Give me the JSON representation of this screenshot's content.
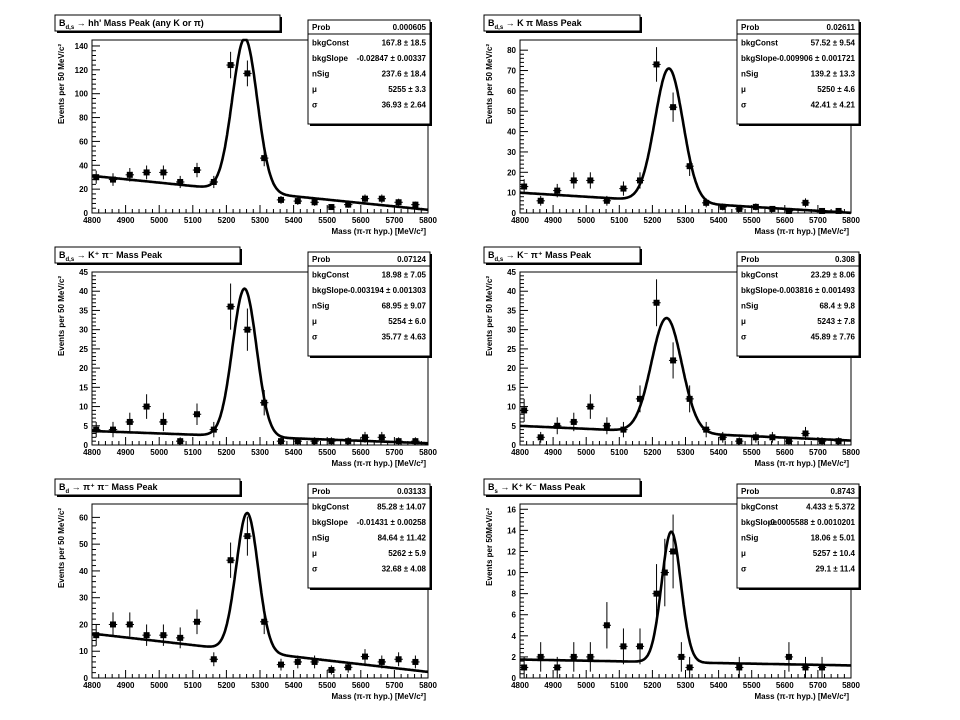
{
  "chart_data": [
    {
      "type": "scatter",
      "title": "B",
      "title_sub": "d,s",
      "title_rest": " → hh' Mass Peak (any K or π)",
      "xlabel": "Mass (π-π hyp.) [MeV/c²]",
      "ylabel": "Events per 50 MeV/c²",
      "xlim": [
        4800,
        5800
      ],
      "ylim": [
        0,
        145
      ],
      "xticks": [
        4800,
        4900,
        5000,
        5100,
        5200,
        5300,
        5400,
        5500,
        5600,
        5700,
        5800
      ],
      "yticks": [
        0,
        20,
        40,
        60,
        80,
        100,
        120,
        140
      ],
      "fit": {
        "const": 167.8,
        "slope": -0.02847,
        "nSig": 237.6,
        "mu": 5255,
        "sigma": 36.93
      },
      "points": {
        "x": [
          4812.5,
          4862.5,
          4912.5,
          4962.5,
          5012.5,
          5062.5,
          5112.5,
          5162.5,
          5212.5,
          5262.5,
          5312.5,
          5362.5,
          5412.5,
          5462.5,
          5512.5,
          5562.5,
          5612.5,
          5662.5,
          5712.5,
          5762.5
        ],
        "y": [
          30,
          28,
          32,
          34,
          34,
          26,
          36,
          26,
          124,
          117,
          46,
          11,
          10,
          9,
          5,
          7,
          12,
          12,
          9,
          7
        ],
        "err": [
          5.5,
          5.3,
          5.7,
          5.8,
          5.8,
          5.1,
          6,
          5.1,
          11.1,
          10.8,
          6.8,
          3.3,
          3.2,
          3,
          2.2,
          2.6,
          3.5,
          3.5,
          3,
          2.6
        ]
      },
      "stats": [
        {
          "label": "Prob",
          "value": "0.000605"
        },
        {
          "label": "bkgConst",
          "value": "167.8 ± 18.5"
        },
        {
          "label": "bkgSlope",
          "value": "-0.02847 ± 0.00337"
        },
        {
          "label": "nSig",
          "value": "237.6 ± 18.4"
        },
        {
          "label": "μ",
          "value": "5255 ± 3.3"
        },
        {
          "label": "σ",
          "value": "36.93 ± 2.64"
        }
      ]
    },
    {
      "type": "scatter",
      "title": "B",
      "title_sub": "d,s",
      "title_rest": " → K π Mass Peak",
      "xlabel": "Mass (π-π hyp.) [MeV/c²]",
      "ylabel": "Events per 50 MeV/c²",
      "xlim": [
        4800,
        5800
      ],
      "ylim": [
        0,
        85
      ],
      "xticks": [
        4800,
        4900,
        5000,
        5100,
        5200,
        5300,
        5400,
        5500,
        5600,
        5700,
        5800
      ],
      "yticks": [
        0,
        10,
        20,
        30,
        40,
        50,
        60,
        70,
        80
      ],
      "fit": {
        "const": 57.52,
        "slope": -0.009906,
        "nSig": 139.2,
        "mu": 5250,
        "sigma": 42.41
      },
      "points": {
        "x": [
          4812.5,
          4862.5,
          4912.5,
          4962.5,
          5012.5,
          5062.5,
          5112.5,
          5162.5,
          5212.5,
          5262.5,
          5312.5,
          5362.5,
          5412.5,
          5462.5,
          5512.5,
          5562.5,
          5612.5,
          5662.5,
          5712.5,
          5762.5
        ],
        "y": [
          13,
          6,
          11,
          16,
          16,
          6,
          12,
          16,
          73,
          52,
          23,
          5,
          3,
          2,
          3,
          2,
          1,
          5,
          1,
          1
        ],
        "err": [
          3.6,
          2.4,
          3.3,
          4,
          4,
          2.4,
          3.5,
          4,
          8.5,
          7.2,
          4.8,
          2.2,
          1.7,
          1.4,
          1.7,
          1.4,
          1,
          2.2,
          1,
          1
        ]
      },
      "stats": [
        {
          "label": "Prob",
          "value": "0.02611"
        },
        {
          "label": "bkgConst",
          "value": "57.52 ± 9.54"
        },
        {
          "label": "bkgSlope",
          "value": "-0.009906 ± 0.001721"
        },
        {
          "label": "nSig",
          "value": "139.2 ± 13.3"
        },
        {
          "label": "μ",
          "value": "5250 ± 4.6"
        },
        {
          "label": "σ",
          "value": "42.41 ± 4.21"
        }
      ]
    },
    {
      "type": "scatter",
      "title": "B",
      "title_sub": "d,s",
      "title_rest": " → K⁺ π⁻ Mass Peak",
      "xlabel": "Mass (π-π hyp.) [MeV/c²]",
      "ylabel": "Events per 50 MeV/c²",
      "xlim": [
        4800,
        5800
      ],
      "ylim": [
        0,
        45
      ],
      "xticks": [
        4800,
        4900,
        5000,
        5100,
        5200,
        5300,
        5400,
        5500,
        5600,
        5700,
        5800
      ],
      "yticks": [
        0,
        5,
        10,
        15,
        20,
        25,
        30,
        35,
        40,
        45
      ],
      "fit": {
        "const": 18.98,
        "slope": -0.003194,
        "nSig": 68.95,
        "mu": 5254,
        "sigma": 35.77
      },
      "points": {
        "x": [
          4812.5,
          4862.5,
          4912.5,
          4962.5,
          5012.5,
          5062.5,
          5112.5,
          5162.5,
          5212.5,
          5262.5,
          5312.5,
          5362.5,
          5412.5,
          5462.5,
          5512.5,
          5562.5,
          5612.5,
          5662.5,
          5712.5,
          5762.5
        ],
        "y": [
          4,
          4,
          6,
          10,
          6,
          1,
          8,
          4,
          36,
          30,
          11,
          1,
          1,
          1,
          1,
          1,
          2,
          2,
          1,
          1
        ],
        "err": [
          2,
          2,
          2.4,
          3.2,
          2.4,
          1,
          2.8,
          2,
          6,
          5.5,
          3.3,
          1,
          1,
          1,
          1,
          1,
          1.4,
          1.4,
          1,
          1
        ]
      },
      "stats": [
        {
          "label": "Prob",
          "value": "0.07124"
        },
        {
          "label": "bkgConst",
          "value": "18.98 ± 7.05"
        },
        {
          "label": "bkgSlope",
          "value": "-0.003194 ± 0.001303"
        },
        {
          "label": "nSig",
          "value": "68.95 ± 9.07"
        },
        {
          "label": "μ",
          "value": "5254 ± 6.0"
        },
        {
          "label": "σ",
          "value": "35.77 ± 4.63"
        }
      ]
    },
    {
      "type": "scatter",
      "title": "B",
      "title_sub": "d,s",
      "title_rest": " → K⁻ π⁺ Mass Peak",
      "xlabel": "Mass (π-π hyp.) [MeV/c²]",
      "ylabel": "Events per 50 MeV/c²",
      "xlim": [
        4800,
        5800
      ],
      "ylim": [
        0,
        45
      ],
      "xticks": [
        4800,
        4900,
        5000,
        5100,
        5200,
        5300,
        5400,
        5500,
        5600,
        5700,
        5800
      ],
      "yticks": [
        0,
        5,
        10,
        15,
        20,
        25,
        30,
        35,
        40,
        45
      ],
      "fit": {
        "const": 23.29,
        "slope": -0.003816,
        "nSig": 68.4,
        "mu": 5243,
        "sigma": 45.89
      },
      "points": {
        "x": [
          4812.5,
          4862.5,
          4912.5,
          4962.5,
          5012.5,
          5062.5,
          5112.5,
          5162.5,
          5212.5,
          5262.5,
          5312.5,
          5362.5,
          5412.5,
          5462.5,
          5512.5,
          5562.5,
          5612.5,
          5662.5,
          5712.5,
          5762.5
        ],
        "y": [
          9,
          2,
          5,
          6,
          10,
          5,
          4,
          12,
          37,
          22,
          12,
          4,
          2,
          1,
          2,
          2,
          1,
          3,
          1,
          1
        ],
        "err": [
          3,
          1.4,
          2.2,
          2.4,
          3.2,
          2.2,
          2,
          3.5,
          6.1,
          4.7,
          3.5,
          2,
          1.4,
          1,
          1.4,
          1.4,
          1,
          1.7,
          1,
          1
        ]
      },
      "stats": [
        {
          "label": "Prob",
          "value": "0.308"
        },
        {
          "label": "bkgConst",
          "value": "23.29 ± 8.06"
        },
        {
          "label": "bkgSlope",
          "value": "-0.003816 ± 0.001493"
        },
        {
          "label": "nSig",
          "value": "68.4 ± 9.8"
        },
        {
          "label": "μ",
          "value": "5243 ± 7.8"
        },
        {
          "label": "σ",
          "value": "45.89 ± 7.76"
        }
      ]
    },
    {
      "type": "scatter",
      "title": "B",
      "title_sub": "d",
      "title_rest": " → π⁺ π⁻ Mass Peak",
      "xlabel": "Mass (π-π hyp.) [MeV/c²]",
      "ylabel": "Events per 50 MeV/c²",
      "xlim": [
        4800,
        5800
      ],
      "ylim": [
        0,
        65
      ],
      "xticks": [
        4800,
        4900,
        5000,
        5100,
        5200,
        5300,
        5400,
        5500,
        5600,
        5700,
        5800
      ],
      "yticks": [
        0,
        10,
        20,
        30,
        40,
        50,
        60
      ],
      "fit": {
        "const": 85.28,
        "slope": -0.01431,
        "nSig": 84.64,
        "mu": 5262,
        "sigma": 32.68
      },
      "points": {
        "x": [
          4812.5,
          4862.5,
          4912.5,
          4962.5,
          5012.5,
          5062.5,
          5112.5,
          5162.5,
          5212.5,
          5262.5,
          5312.5,
          5362.5,
          5412.5,
          5462.5,
          5512.5,
          5562.5,
          5612.5,
          5662.5,
          5712.5,
          5762.5
        ],
        "y": [
          16,
          20,
          20,
          16,
          16,
          15,
          21,
          7,
          44,
          53,
          21,
          5,
          6,
          6,
          3,
          4,
          8,
          6,
          7,
          6
        ],
        "err": [
          4,
          4.5,
          4.5,
          4,
          4,
          3.9,
          4.6,
          2.6,
          6.6,
          7.3,
          4.6,
          2.2,
          2.4,
          2.4,
          1.7,
          2,
          2.8,
          2.4,
          2.6,
          2.4
        ]
      },
      "stats": [
        {
          "label": "Prob",
          "value": "0.03133"
        },
        {
          "label": "bkgConst",
          "value": "85.28 ± 14.07"
        },
        {
          "label": "bkgSlope",
          "value": "-0.01431 ± 0.00258"
        },
        {
          "label": "nSig",
          "value": "84.64 ± 11.42"
        },
        {
          "label": "μ",
          "value": "5262 ± 5.9"
        },
        {
          "label": "σ",
          "value": "32.68 ± 4.08"
        }
      ]
    },
    {
      "type": "scatter",
      "title": "B",
      "title_sub": "s",
      "title_rest": " → K⁺ K⁻ Mass Peak",
      "xlabel": "Mass (π-π hyp.) [MeV/c²]",
      "ylabel": "Events per 50MeV/c²",
      "xlim": [
        4800,
        5800
      ],
      "ylim": [
        0,
        16.5
      ],
      "xticks": [
        4800,
        4900,
        5000,
        5100,
        5200,
        5300,
        5400,
        5500,
        5600,
        5700,
        5800
      ],
      "yticks": [
        0,
        2,
        4,
        6,
        8,
        10,
        12,
        14,
        16
      ],
      "fit": {
        "const": 4.433,
        "slope": -0.0005588,
        "nSig": 18.06,
        "mu": 5257,
        "sigma": 29.1
      },
      "points": {
        "x": [
          4812.5,
          4862.5,
          4912.5,
          4962.5,
          5012.5,
          5062.5,
          5112.5,
          5162.5,
          5212.5,
          5237.5,
          5262.5,
          5287.5,
          5312.5,
          5462.5,
          5612.5,
          5662.5,
          5712.5
        ],
        "y": [
          1,
          2,
          1,
          2,
          2,
          5,
          3,
          3,
          8,
          10,
          12,
          2,
          1,
          1,
          2,
          1,
          1
        ],
        "err": [
          1,
          1.4,
          1,
          1.4,
          1.4,
          2.2,
          1.7,
          1.7,
          2.8,
          3.2,
          3.5,
          1.4,
          1,
          1,
          1.4,
          1,
          1
        ]
      },
      "stats": [
        {
          "label": "Prob",
          "value": "0.8743"
        },
        {
          "label": "bkgConst",
          "value": "4.433 ± 5.372"
        },
        {
          "label": "bkgSlope",
          "value": "-0.0005588 ± 0.0010201"
        },
        {
          "label": "nSig",
          "value": "18.06 ± 5.01"
        },
        {
          "label": "μ",
          "value": "5257 ± 10.4"
        },
        {
          "label": "σ",
          "value": "29.1 ± 11.4"
        }
      ]
    }
  ]
}
